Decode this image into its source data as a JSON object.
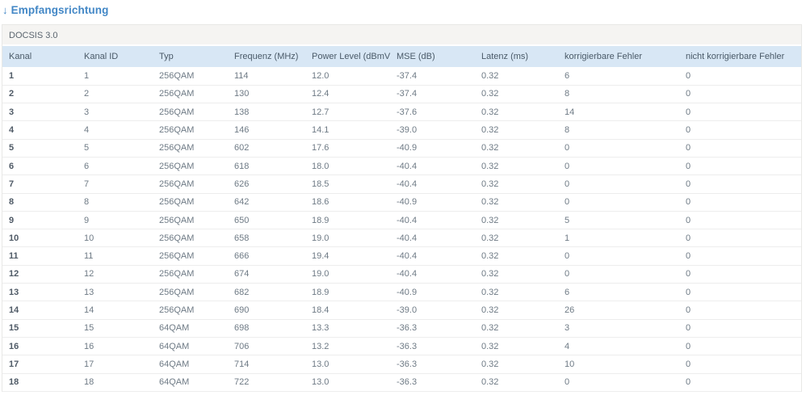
{
  "page": {
    "title_arrow": "↓",
    "title": "Empfangsrichtung"
  },
  "section": {
    "label": "DOCSIS 3.0"
  },
  "table": {
    "columns": [
      "Kanal",
      "Kanal ID",
      "Typ",
      "Frequenz (MHz)",
      "Power Level (dBmV)",
      "MSE (dB)",
      "Latenz (ms)",
      "korrigierbare Fehler",
      "nicht korrigierbare Fehler"
    ],
    "rows": [
      [
        "1",
        "1",
        "256QAM",
        "114",
        "12.0",
        "-37.4",
        "0.32",
        "6",
        "0"
      ],
      [
        "2",
        "2",
        "256QAM",
        "130",
        "12.4",
        "-37.4",
        "0.32",
        "8",
        "0"
      ],
      [
        "3",
        "3",
        "256QAM",
        "138",
        "12.7",
        "-37.6",
        "0.32",
        "14",
        "0"
      ],
      [
        "4",
        "4",
        "256QAM",
        "146",
        "14.1",
        "-39.0",
        "0.32",
        "8",
        "0"
      ],
      [
        "5",
        "5",
        "256QAM",
        "602",
        "17.6",
        "-40.9",
        "0.32",
        "0",
        "0"
      ],
      [
        "6",
        "6",
        "256QAM",
        "618",
        "18.0",
        "-40.4",
        "0.32",
        "0",
        "0"
      ],
      [
        "7",
        "7",
        "256QAM",
        "626",
        "18.5",
        "-40.4",
        "0.32",
        "0",
        "0"
      ],
      [
        "8",
        "8",
        "256QAM",
        "642",
        "18.6",
        "-40.9",
        "0.32",
        "0",
        "0"
      ],
      [
        "9",
        "9",
        "256QAM",
        "650",
        "18.9",
        "-40.4",
        "0.32",
        "5",
        "0"
      ],
      [
        "10",
        "10",
        "256QAM",
        "658",
        "19.0",
        "-40.4",
        "0.32",
        "1",
        "0"
      ],
      [
        "11",
        "11",
        "256QAM",
        "666",
        "19.4",
        "-40.4",
        "0.32",
        "0",
        "0"
      ],
      [
        "12",
        "12",
        "256QAM",
        "674",
        "19.0",
        "-40.4",
        "0.32",
        "0",
        "0"
      ],
      [
        "13",
        "13",
        "256QAM",
        "682",
        "18.9",
        "-40.9",
        "0.32",
        "6",
        "0"
      ],
      [
        "14",
        "14",
        "256QAM",
        "690",
        "18.4",
        "-39.0",
        "0.32",
        "26",
        "0"
      ],
      [
        "15",
        "15",
        "64QAM",
        "698",
        "13.3",
        "-36.3",
        "0.32",
        "3",
        "0"
      ],
      [
        "16",
        "16",
        "64QAM",
        "706",
        "13.2",
        "-36.3",
        "0.32",
        "4",
        "0"
      ],
      [
        "17",
        "17",
        "64QAM",
        "714",
        "13.0",
        "-36.3",
        "0.32",
        "10",
        "0"
      ],
      [
        "18",
        "18",
        "64QAM",
        "722",
        "13.0",
        "-36.3",
        "0.32",
        "0",
        "0"
      ]
    ]
  },
  "colors": {
    "title_blue": "#4287c6",
    "header_bg": "#d8e7f5",
    "section_bg": "#f5f4f2",
    "header_text": "#4a5a68",
    "body_text": "#6e7a85",
    "row_border": "#ededed"
  }
}
